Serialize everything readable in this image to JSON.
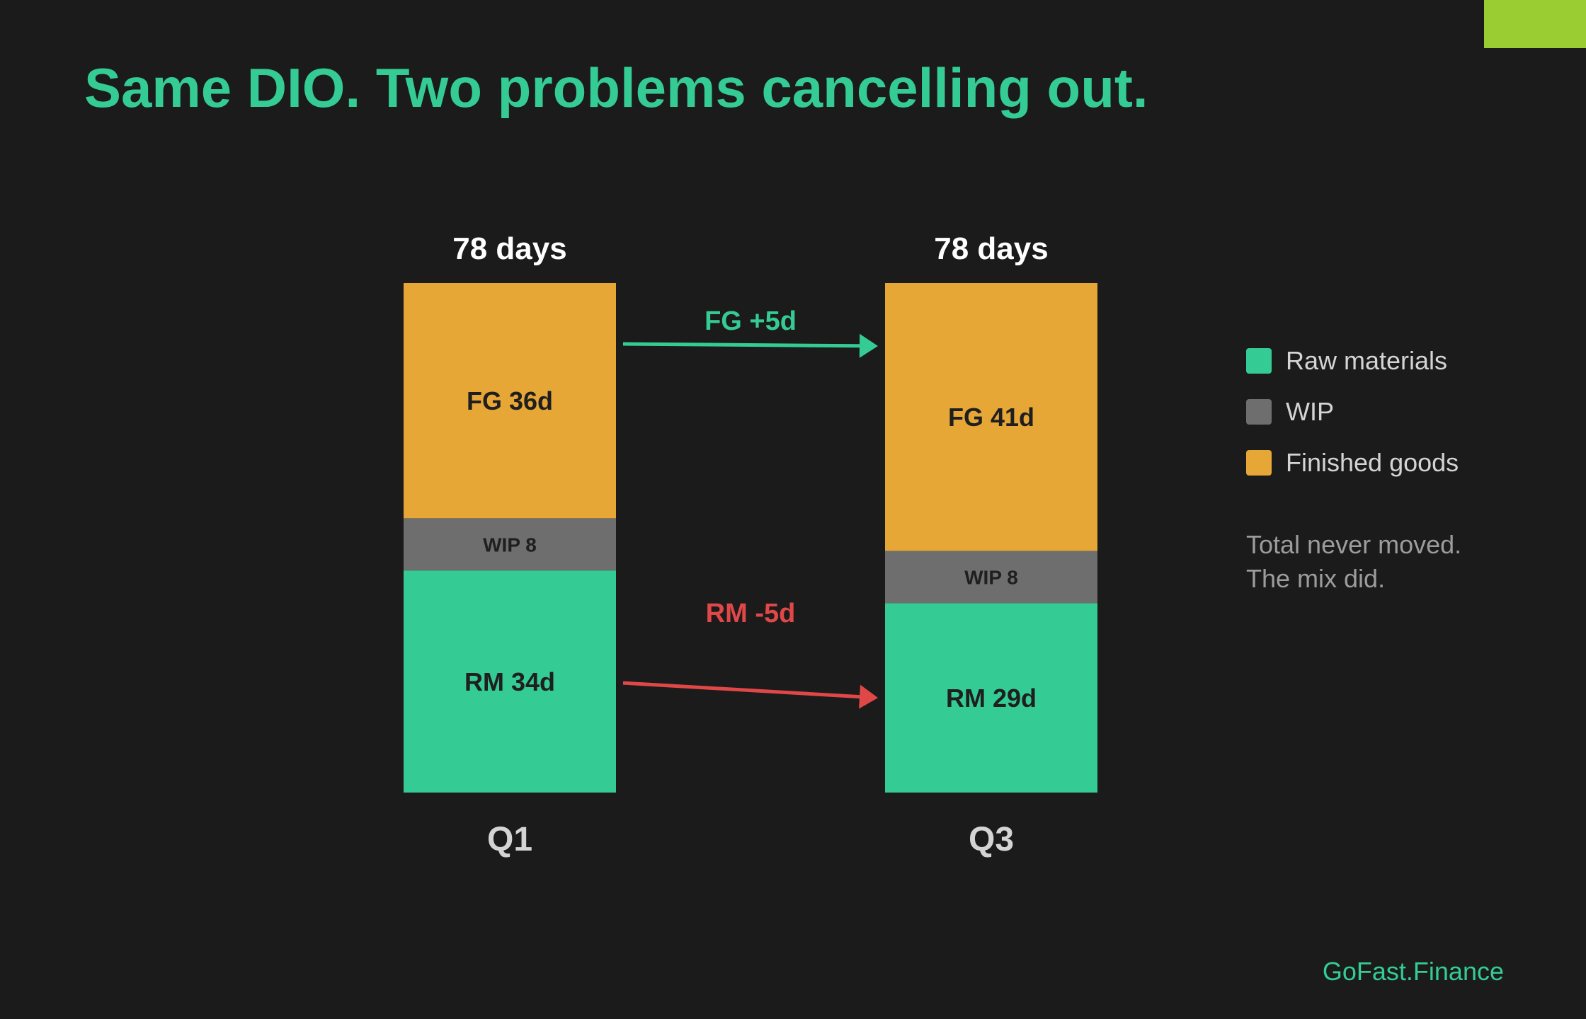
{
  "title": "Same DIO. Two problems cancelling out.",
  "colors": {
    "background": "#1b1b1b",
    "accent": "#34cc94",
    "corner": "#9acd32",
    "raw_materials": "#34cc94",
    "wip": "#6e6e6e",
    "finished_goods": "#e6a737",
    "increase_arrow": "#34cc94",
    "decrease_arrow": "#e04848",
    "segment_text": "#1f1f1f",
    "total_text": "#ffffff",
    "category_text": "#d4d4d4"
  },
  "chart_data": {
    "type": "bar",
    "stacked": true,
    "categories": [
      "Q1",
      "Q3"
    ],
    "totals": [
      78,
      78
    ],
    "total_labels": [
      "78 days",
      "78 days"
    ],
    "series": [
      {
        "name": "Raw materials",
        "values": [
          34,
          29
        ],
        "labels": [
          "RM 34d",
          "RM 29d"
        ]
      },
      {
        "name": "WIP",
        "values": [
          8,
          8
        ],
        "labels": [
          "WIP 8",
          "WIP 8"
        ]
      },
      {
        "name": "Finished goods",
        "values": [
          36,
          41
        ],
        "labels": [
          "FG 36d",
          "FG 41d"
        ]
      }
    ],
    "ylim": [
      0,
      78
    ],
    "grid": false,
    "legend_position": "right",
    "annotations": [
      {
        "label": "FG +5d",
        "series": "Finished goods",
        "change": 5
      },
      {
        "label": "RM -5d",
        "series": "Raw materials",
        "change": -5
      }
    ]
  },
  "legend": [
    {
      "label": "Raw materials",
      "color": "#34cc94"
    },
    {
      "label": "WIP",
      "color": "#6e6e6e"
    },
    {
      "label": "Finished goods",
      "color": "#e6a737"
    }
  ],
  "note": [
    "Total never moved.",
    "The mix did."
  ],
  "brand": "GoFast.Finance"
}
